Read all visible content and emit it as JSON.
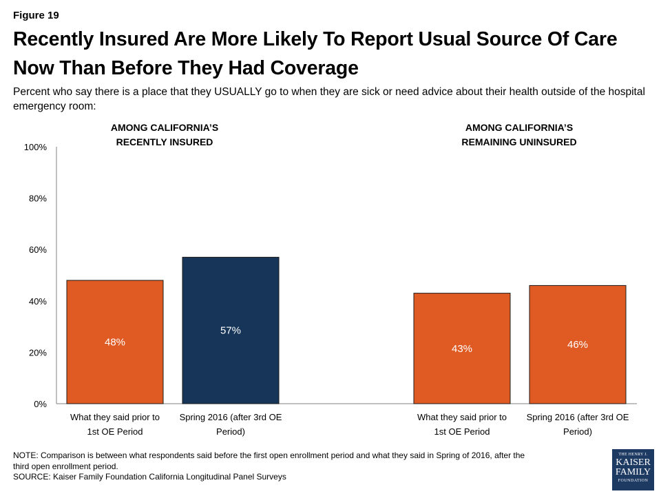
{
  "figure_label": "Figure 19",
  "title": "Recently Insured Are More Likely To Report Usual Source Of Care Now Than Before They Had Coverage",
  "subtitle": "Percent who say there is a place that they USUALLY go to when they are sick or need advice about their health outside of the hospital emergency room:",
  "panels": [
    {
      "title_line1": "AMONG CALIFORNIA’S",
      "title_line2": "RECENTLY INSURED"
    },
    {
      "title_line1": "AMONG CALIFORNIA’S",
      "title_line2": "REMAINING UNINSURED"
    }
  ],
  "note_line1": "NOTE: Comparison is between what respondents said before the first open enrollment period and what they said in Spring of 2016, after the",
  "note_line2": "third open enrollment period.",
  "source": "SOURCE: Kaiser Family Foundation California Longitudinal Panel Surveys",
  "logo": {
    "line1": "THE HENRY J.",
    "line2": "KAISER",
    "line3": "FAMILY",
    "line4": "FOUNDATION"
  },
  "chart_data": {
    "type": "bar",
    "ylim": [
      0,
      100
    ],
    "yticks": [
      "0%",
      "20%",
      "40%",
      "60%",
      "80%",
      "100%"
    ],
    "bars": [
      {
        "group": "AMONG CALIFORNIA’S RECENTLY INSURED",
        "label_line1": "What they said prior to",
        "label_line2": "1st OE Period",
        "value": 48,
        "value_label": "48%",
        "color": "#e05a23"
      },
      {
        "group": "AMONG CALIFORNIA’S RECENTLY INSURED",
        "label_line1": "Spring 2016 (after 3rd OE",
        "label_line2": "Period)",
        "value": 57,
        "value_label": "57%",
        "color": "#163558"
      },
      {
        "group": "AMONG CALIFORNIA’S REMAINING UNINSURED",
        "label_line1": "What they said prior to",
        "label_line2": "1st OE Period",
        "value": 43,
        "value_label": "43%",
        "color": "#e05a23"
      },
      {
        "group": "AMONG CALIFORNIA’S REMAINING UNINSURED",
        "label_line1": "Spring 2016 (after 3rd OE",
        "label_line2": "Period)",
        "value": 46,
        "value_label": "46%",
        "color": "#e05a23"
      }
    ]
  }
}
